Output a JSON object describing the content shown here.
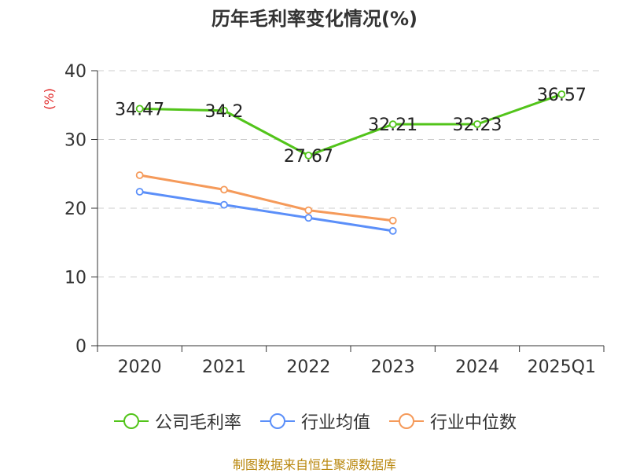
{
  "chart_data": {
    "type": "line",
    "title": "历年毛利率变化情况(%)",
    "ylabel": "(%)",
    "xlabel": "",
    "categories": [
      "2020",
      "2021",
      "2022",
      "2023",
      "2024",
      "2025Q1"
    ],
    "ylim": [
      0,
      40
    ],
    "yticks": [
      0,
      10,
      20,
      30,
      40
    ],
    "grid": true,
    "legend_position": "bottom",
    "series": [
      {
        "name": "公司毛利率",
        "color": "#52c41a",
        "values": [
          34.47,
          34.2,
          27.67,
          32.21,
          32.23,
          36.57
        ],
        "labels": [
          "34.47",
          "34.2",
          "27.67",
          "32.21",
          "32.23",
          "36.57"
        ]
      },
      {
        "name": "行业均值",
        "color": "#5b8ff9",
        "values": [
          22.4,
          20.5,
          18.6,
          16.7,
          null,
          null
        ]
      },
      {
        "name": "行业中位数",
        "color": "#f59a5a",
        "values": [
          24.8,
          22.7,
          19.7,
          18.2,
          null,
          null
        ]
      }
    ]
  },
  "source_note": "制图数据来自恒生聚源数据库",
  "colors": {
    "axis_label": "#e02020",
    "grid": "#cccccc",
    "axis": "#333333"
  }
}
